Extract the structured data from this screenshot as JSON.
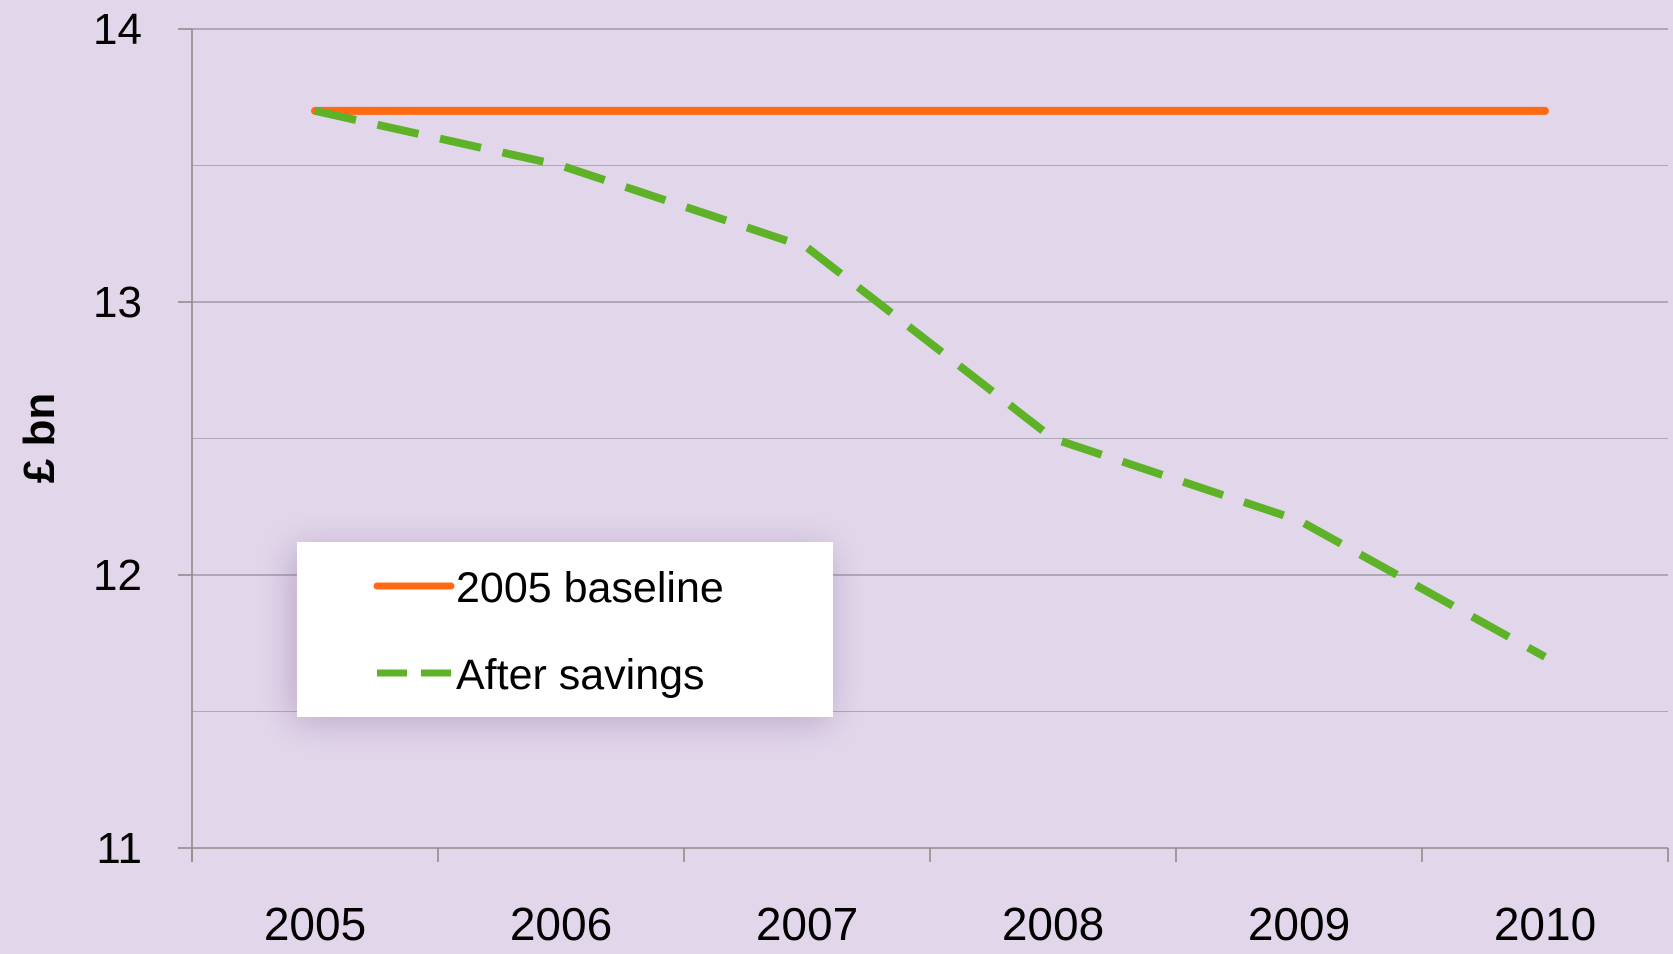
{
  "chart_data": {
    "type": "line",
    "title": "",
    "xlabel": "",
    "ylabel": "£ bn",
    "categories": [
      "2005",
      "2006",
      "2007",
      "2008",
      "2009",
      "2010"
    ],
    "ylim": [
      11,
      14
    ],
    "yticks": [
      11,
      12,
      13,
      14
    ],
    "grid": true,
    "legend_position": "left-center",
    "series": [
      {
        "name": "2005 baseline",
        "values": [
          13.7,
          13.7,
          13.7,
          13.7,
          13.7,
          13.7
        ],
        "color": "#ff6a13",
        "style": "solid"
      },
      {
        "name": "After savings",
        "values": [
          13.7,
          13.5,
          13.2,
          12.5,
          12.2,
          11.7
        ],
        "color": "#5db227",
        "style": "dashed"
      }
    ]
  },
  "colors": {
    "background": "#e2d7ea",
    "grid": "#9a9aa2",
    "axis": "#8c8c8c",
    "text": "#000000"
  }
}
